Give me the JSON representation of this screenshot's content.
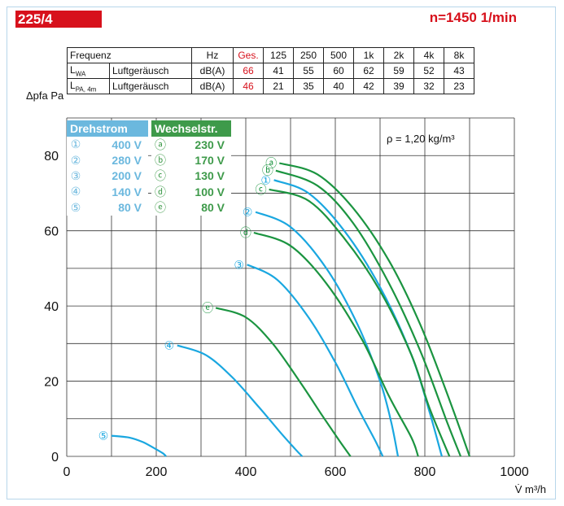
{
  "header": {
    "model": "225/4",
    "speed": "n=1450 1/min"
  },
  "table": {
    "row1": [
      "Frequenz",
      "Hz",
      "Ges.",
      "125",
      "250",
      "500",
      "1k",
      "2k",
      "4k",
      "8k"
    ],
    "row2": {
      "sym": "L",
      "sub": "WA",
      "label": "Luftgeräusch",
      "unit": "dB(A)",
      "values": [
        "66",
        "41",
        "55",
        "60",
        "62",
        "59",
        "52",
        "43"
      ]
    },
    "row3": {
      "sym": "L",
      "sub": "PA, 4m",
      "label": "Luftgeräusch",
      "unit": "dB(A)",
      "values": [
        "46",
        "21",
        "35",
        "40",
        "42",
        "39",
        "32",
        "23"
      ]
    }
  },
  "legend_dreh": {
    "title": "Drehstrom",
    "items": [
      {
        "mark": "①",
        "value": "400 V"
      },
      {
        "mark": "②",
        "value": "280 V"
      },
      {
        "mark": "③",
        "value": "200 V"
      },
      {
        "mark": "④",
        "value": "140 V"
      },
      {
        "mark": "⑤",
        "value": "80 V"
      }
    ]
  },
  "legend_wechsel": {
    "title": "Wechselstr.",
    "items": [
      {
        "mark": "ⓐ",
        "value": "230 V"
      },
      {
        "mark": "ⓑ",
        "value": "170 V"
      },
      {
        "mark": "ⓒ",
        "value": "130 V"
      },
      {
        "mark": "ⓓ",
        "value": "100 V"
      },
      {
        "mark": "ⓔ",
        "value": "80 V"
      }
    ]
  },
  "chart_data": {
    "type": "line",
    "xlabel": "V̇ m³/h",
    "ylabel": "Δpfa Pa",
    "xlim": [
      0,
      1000
    ],
    "ylim": [
      0,
      90
    ],
    "xticks": [
      0,
      200,
      400,
      600,
      800,
      1000
    ],
    "yticks": [
      0,
      20,
      40,
      60,
      80
    ],
    "grid": true,
    "annotation": "ρ = 1,20 kg/m³",
    "colors": {
      "drehstrom": "#1aa7e0",
      "wechselstrom": "#1b9440",
      "accent": "#d7111c",
      "grid": "#333333"
    },
    "series": [
      {
        "name": "ⓐ",
        "group": "wechselstrom",
        "x": [
          475,
          560,
          640,
          720,
          790,
          855,
          900
        ],
        "y": [
          78,
          75,
          66,
          52,
          35,
          15,
          0
        ]
      },
      {
        "name": "ⓑ",
        "group": "wechselstrom",
        "x": [
          467,
          560,
          640,
          720,
          790,
          850,
          880
        ],
        "y": [
          76,
          72,
          62,
          46,
          28,
          9,
          0
        ]
      },
      {
        "name": "①",
        "group": "drehstrom",
        "x": [
          463,
          540,
          620,
          700,
          770,
          810,
          838
        ],
        "y": [
          73.5,
          70,
          60,
          45,
          27,
          12,
          0
        ]
      },
      {
        "name": "ⓒ",
        "group": "wechselstrom",
        "x": [
          452,
          540,
          620,
          700,
          770,
          810,
          855
        ],
        "y": [
          71,
          68,
          58,
          44,
          27,
          13,
          0
        ]
      },
      {
        "name": "②",
        "group": "drehstrom",
        "x": [
          422,
          500,
          580,
          650,
          700,
          725,
          740
        ],
        "y": [
          65,
          61,
          50,
          35,
          20,
          9,
          0
        ]
      },
      {
        "name": "ⓓ",
        "group": "wechselstrom",
        "x": [
          418,
          500,
          580,
          660,
          720,
          770,
          785
        ],
        "y": [
          59.5,
          56,
          46,
          31,
          16,
          5,
          0
        ]
      },
      {
        "name": "③",
        "group": "drehstrom",
        "x": [
          403,
          470,
          540,
          600,
          650,
          690,
          706
        ],
        "y": [
          51,
          47,
          37,
          25,
          13,
          4,
          0
        ]
      },
      {
        "name": "ⓔ",
        "group": "wechselstrom",
        "x": [
          333,
          400,
          460,
          520,
          570,
          610,
          634
        ],
        "y": [
          39.5,
          37,
          30,
          20,
          11,
          4,
          0
        ]
      },
      {
        "name": "④",
        "group": "drehstrom",
        "x": [
          247,
          310,
          370,
          430,
          480,
          510,
          526
        ],
        "y": [
          29.5,
          27,
          21,
          13,
          6,
          2,
          0
        ]
      },
      {
        "name": "⑤",
        "group": "drehstrom",
        "x": [
          100,
          140,
          170,
          195,
          215,
          222
        ],
        "y": [
          5.5,
          5,
          3.8,
          2.2,
          0.8,
          0
        ]
      }
    ]
  }
}
